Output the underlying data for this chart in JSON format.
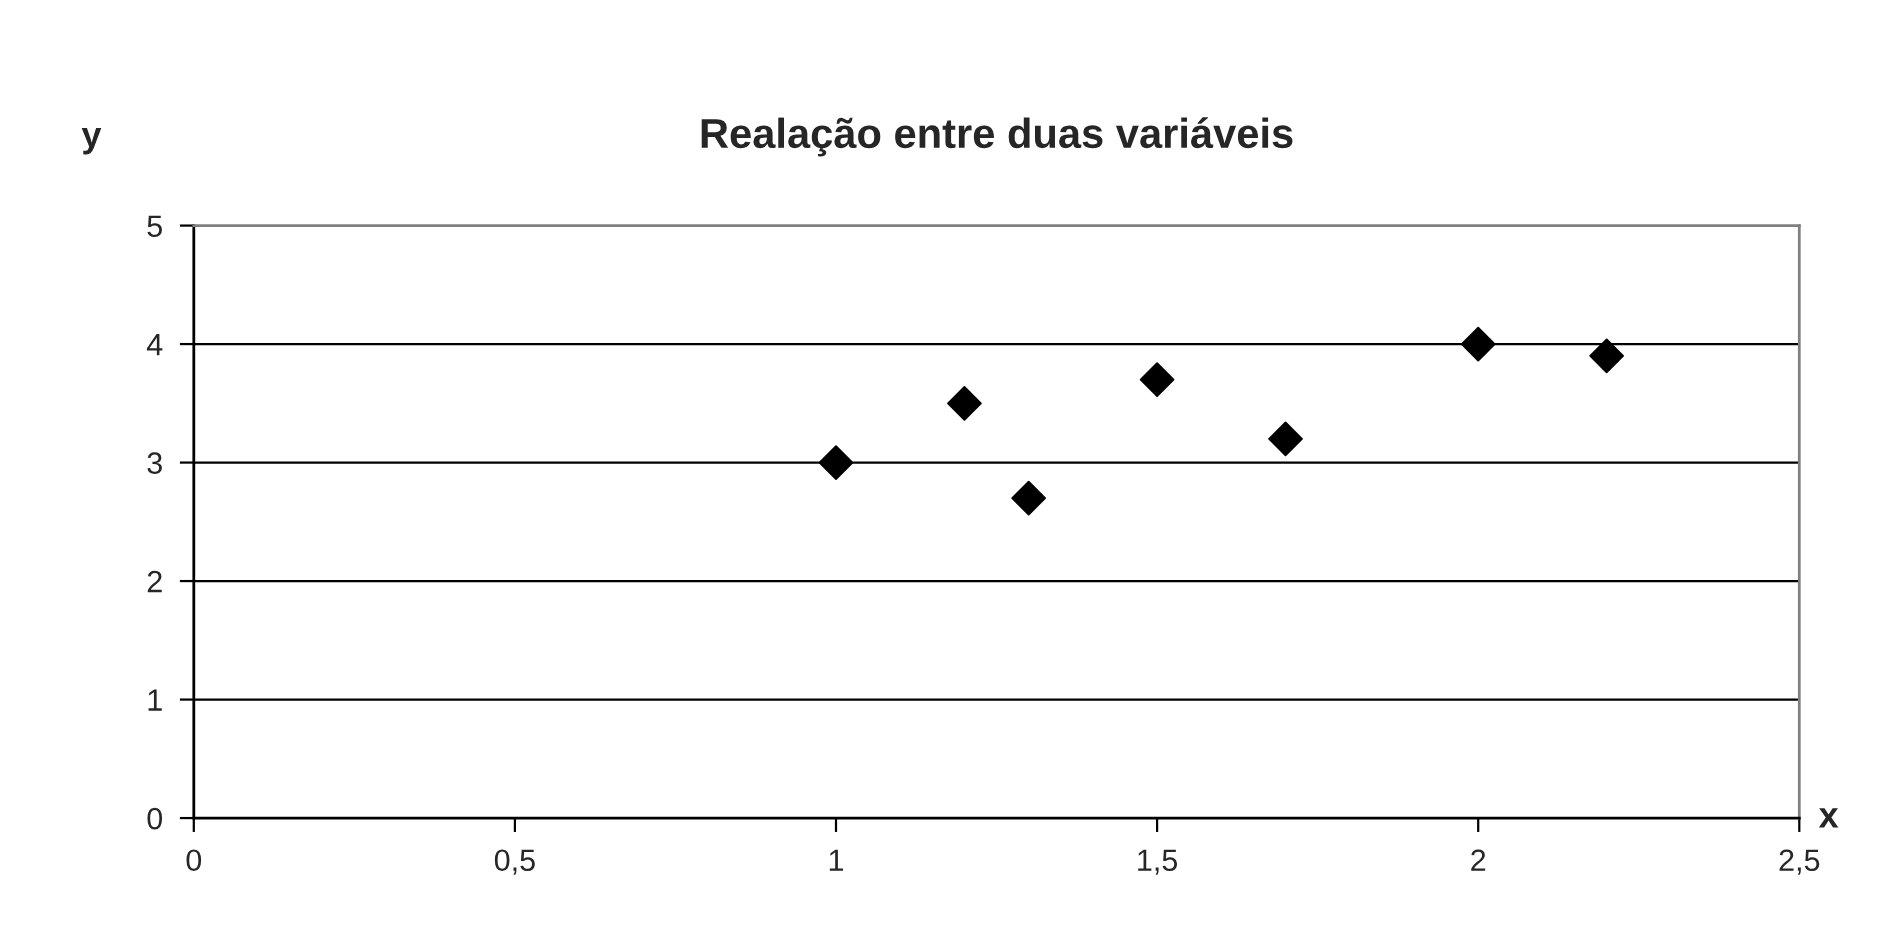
{
  "chart_data": {
    "type": "scatter",
    "title": "Realação entre duas variáveis",
    "xlabel": "x",
    "ylabel": "y",
    "x": [
      1,
      1.2,
      1.3,
      1.5,
      1.7,
      2,
      2.2
    ],
    "values": [
      3,
      3.5,
      2.7,
      3.7,
      3.2,
      4,
      3.9
    ],
    "color": "#000000",
    "marker": "diamond",
    "xlim": [
      0,
      2.5
    ],
    "xticks": [
      0,
      {
        "value": 0.5,
        "label": "0,5"
      },
      1,
      {
        "value": 1.5,
        "label": "1,5"
      },
      2,
      {
        "value": 2.5,
        "label": "2,5"
      }
    ],
    "ylim": [
      0,
      5
    ],
    "yticks": [
      0,
      1,
      2,
      3,
      4,
      5
    ],
    "grid": "y",
    "legend": false
  }
}
